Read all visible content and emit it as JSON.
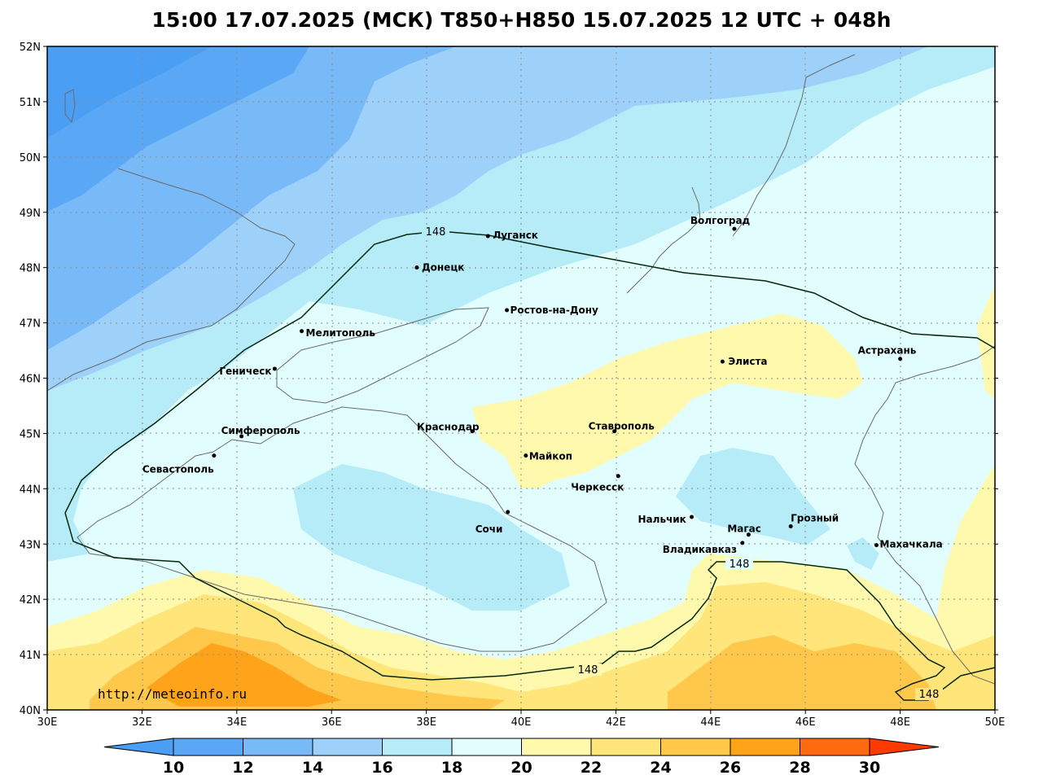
{
  "title": "15:00 17.07.2025 (МСК) T850+H850 15.07.2025 12 UTC + 048h",
  "watermark": "http://meteoinfo.ru",
  "axes": {
    "lat_labels": [
      "52N",
      "51N",
      "50N",
      "49N",
      "48N",
      "47N",
      "46N",
      "45N",
      "44N",
      "43N",
      "42N",
      "41N",
      "40N"
    ],
    "lon_labels": [
      "30E",
      "32E",
      "34E",
      "36E",
      "38E",
      "40E",
      "42E",
      "44E",
      "46E",
      "48E",
      "50E"
    ]
  },
  "isoline_label": "148",
  "colorbar": {
    "labels": [
      "10",
      "12",
      "14",
      "16",
      "18",
      "20",
      "22",
      "24",
      "26",
      "28",
      "30"
    ],
    "colors": [
      "#4a9ff5",
      "#5aa8f5",
      "#78b9f7",
      "#9dd1f9",
      "#b6ecf8",
      "#e2fdfd",
      "#fff9ad",
      "#ffe57a",
      "#ffc84a",
      "#ffa41a",
      "#ff6a10",
      "#ff3a00"
    ]
  },
  "cities": [
    {
      "name": "Волгоград",
      "lon": 44.5,
      "lat": 48.7
    },
    {
      "name": "Луганск",
      "lon": 39.3,
      "lat": 48.57
    },
    {
      "name": "Донецк",
      "lon": 37.8,
      "lat": 48.0
    },
    {
      "name": "Ростов-на-Дону",
      "lon": 39.7,
      "lat": 47.23
    },
    {
      "name": "Мелитополь",
      "lon": 35.37,
      "lat": 46.85
    },
    {
      "name": "Геническ",
      "lon": 34.8,
      "lat": 46.17
    },
    {
      "name": "Элиста",
      "lon": 44.25,
      "lat": 46.3
    },
    {
      "name": "Астрахань",
      "lon": 48.0,
      "lat": 46.35
    },
    {
      "name": "Краснодар",
      "lon": 38.97,
      "lat": 45.04
    },
    {
      "name": "Ставрополь",
      "lon": 41.97,
      "lat": 45.04
    },
    {
      "name": "Симферополь",
      "lon": 34.1,
      "lat": 44.95
    },
    {
      "name": "Майкоп",
      "lon": 40.1,
      "lat": 44.6
    },
    {
      "name": "Севастополь",
      "lon": 33.52,
      "lat": 44.6
    },
    {
      "name": "Черкесск",
      "lon": 42.05,
      "lat": 44.23
    },
    {
      "name": "Сочи",
      "lon": 39.72,
      "lat": 43.58
    },
    {
      "name": "Нальчик",
      "lon": 43.6,
      "lat": 43.49
    },
    {
      "name": "Грозный",
      "lon": 45.69,
      "lat": 43.32
    },
    {
      "name": "Магас",
      "lon": 44.8,
      "lat": 43.17
    },
    {
      "name": "Владикавказ",
      "lon": 44.67,
      "lat": 43.02
    },
    {
      "name": "Махачкала",
      "lon": 47.5,
      "lat": 42.98
    }
  ]
}
